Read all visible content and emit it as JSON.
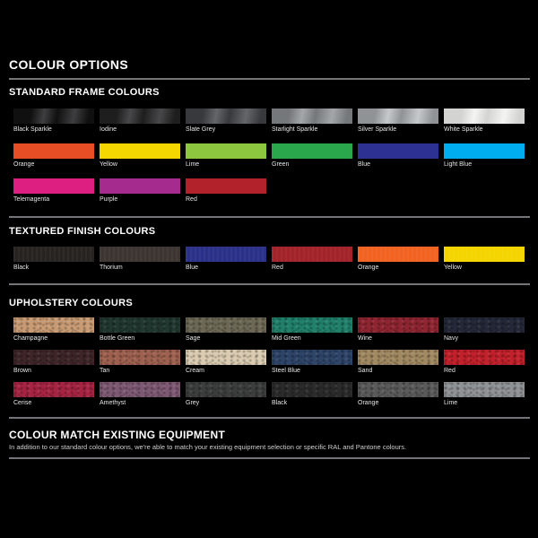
{
  "page": {
    "title": "COLOUR OPTIONS"
  },
  "colors": {
    "background": "#000000",
    "divider": "#737578",
    "heading_text": "#ffffff",
    "label_text": "#e6e6e6"
  },
  "sections": [
    {
      "heading": "STANDARD FRAME COLOURS",
      "swatches": [
        {
          "label": "Black Sparkle",
          "finish": "sparkle",
          "color": "#101010",
          "highlight": "#3e3e40"
        },
        {
          "label": "Iodine",
          "finish": "sparkle",
          "color": "#1e1e1f",
          "highlight": "#48484a"
        },
        {
          "label": "Slate Grey",
          "finish": "sparkle",
          "color": "#37393c",
          "highlight": "#64676a"
        },
        {
          "label": "Starlight Sparkle",
          "finish": "sparkle",
          "color": "#75787b",
          "highlight": "#a4a7aa"
        },
        {
          "label": "Silver Sparkle",
          "finish": "sparkle",
          "color": "#909396",
          "highlight": "#c6c9cc"
        },
        {
          "label": "White Sparkle",
          "finish": "sparkle",
          "color": "#d3d3d1",
          "highlight": "#f4f4f2"
        },
        {
          "label": "Orange",
          "finish": "flat",
          "color": "#e84e25"
        },
        {
          "label": "Yellow",
          "finish": "flat",
          "color": "#f4d600"
        },
        {
          "label": "Lime",
          "finish": "flat",
          "color": "#8dc63f"
        },
        {
          "label": "Green",
          "finish": "flat",
          "color": "#2aa74c"
        },
        {
          "label": "Blue",
          "finish": "flat",
          "color": "#2d3192"
        },
        {
          "label": "Light Blue",
          "finish": "flat",
          "color": "#00aeef"
        },
        {
          "label": "Telemagenta",
          "finish": "flat",
          "color": "#de1f82"
        },
        {
          "label": "Purple",
          "finish": "flat",
          "color": "#a52c8e"
        },
        {
          "label": "Red",
          "finish": "flat",
          "color": "#b2222a"
        }
      ]
    },
    {
      "heading": "TEXTURED FINISH COLOURS",
      "swatches": [
        {
          "label": "Black",
          "finish": "textured",
          "color": "#272320"
        },
        {
          "label": "Thorium",
          "finish": "textured",
          "color": "#3c3531"
        },
        {
          "label": "Blue",
          "finish": "textured",
          "color": "#2b3188"
        },
        {
          "label": "Red",
          "finish": "textured",
          "color": "#a22329"
        },
        {
          "label": "Orange",
          "finish": "textured",
          "color": "#f26322"
        },
        {
          "label": "Yellow",
          "finish": "textured",
          "color": "#f4d500"
        }
      ]
    },
    {
      "heading": "UPHOLSTERY COLOURS",
      "swatches": [
        {
          "label": "Champagne",
          "finish": "leather",
          "color": "#c89b74"
        },
        {
          "label": "Bottle Green",
          "finish": "leather",
          "color": "#213830"
        },
        {
          "label": "Sage",
          "finish": "leather",
          "color": "#6c6855"
        },
        {
          "label": "Mid Green",
          "finish": "leather",
          "color": "#20806a"
        },
        {
          "label": "Wine",
          "finish": "leather",
          "color": "#8f2531"
        },
        {
          "label": "Navy",
          "finish": "leather",
          "color": "#242838"
        },
        {
          "label": "Brown",
          "finish": "leather",
          "color": "#3e2528"
        },
        {
          "label": "Tan",
          "finish": "leather",
          "color": "#9e6150"
        },
        {
          "label": "Cream",
          "finish": "leather",
          "color": "#dacbb1"
        },
        {
          "label": "Steel Blue",
          "finish": "leather",
          "color": "#2e4468"
        },
        {
          "label": "Sand",
          "finish": "leather",
          "color": "#a18962"
        },
        {
          "label": "Red",
          "finish": "leather",
          "color": "#c2202a"
        },
        {
          "label": "Cerise",
          "finish": "leather",
          "color": "#a62442"
        },
        {
          "label": "Amethyst",
          "finish": "leather",
          "color": "#7d5973"
        },
        {
          "label": "Grey",
          "finish": "leather",
          "color": "#3c3e3d"
        },
        {
          "label": "Black",
          "finish": "leather",
          "color": "#2b2b2b"
        },
        {
          "label": "Orange",
          "finish": "leather",
          "color": "#5a5a5a"
        },
        {
          "label": "Lime",
          "finish": "leather",
          "color": "#8f9295"
        }
      ]
    }
  ],
  "footer": {
    "heading": "COLOUR MATCH EXISTING EQUIPMENT",
    "body": "In addition to our standard colour options, we're able to match your existing equipment selection or specific RAL and Pantone colours."
  }
}
